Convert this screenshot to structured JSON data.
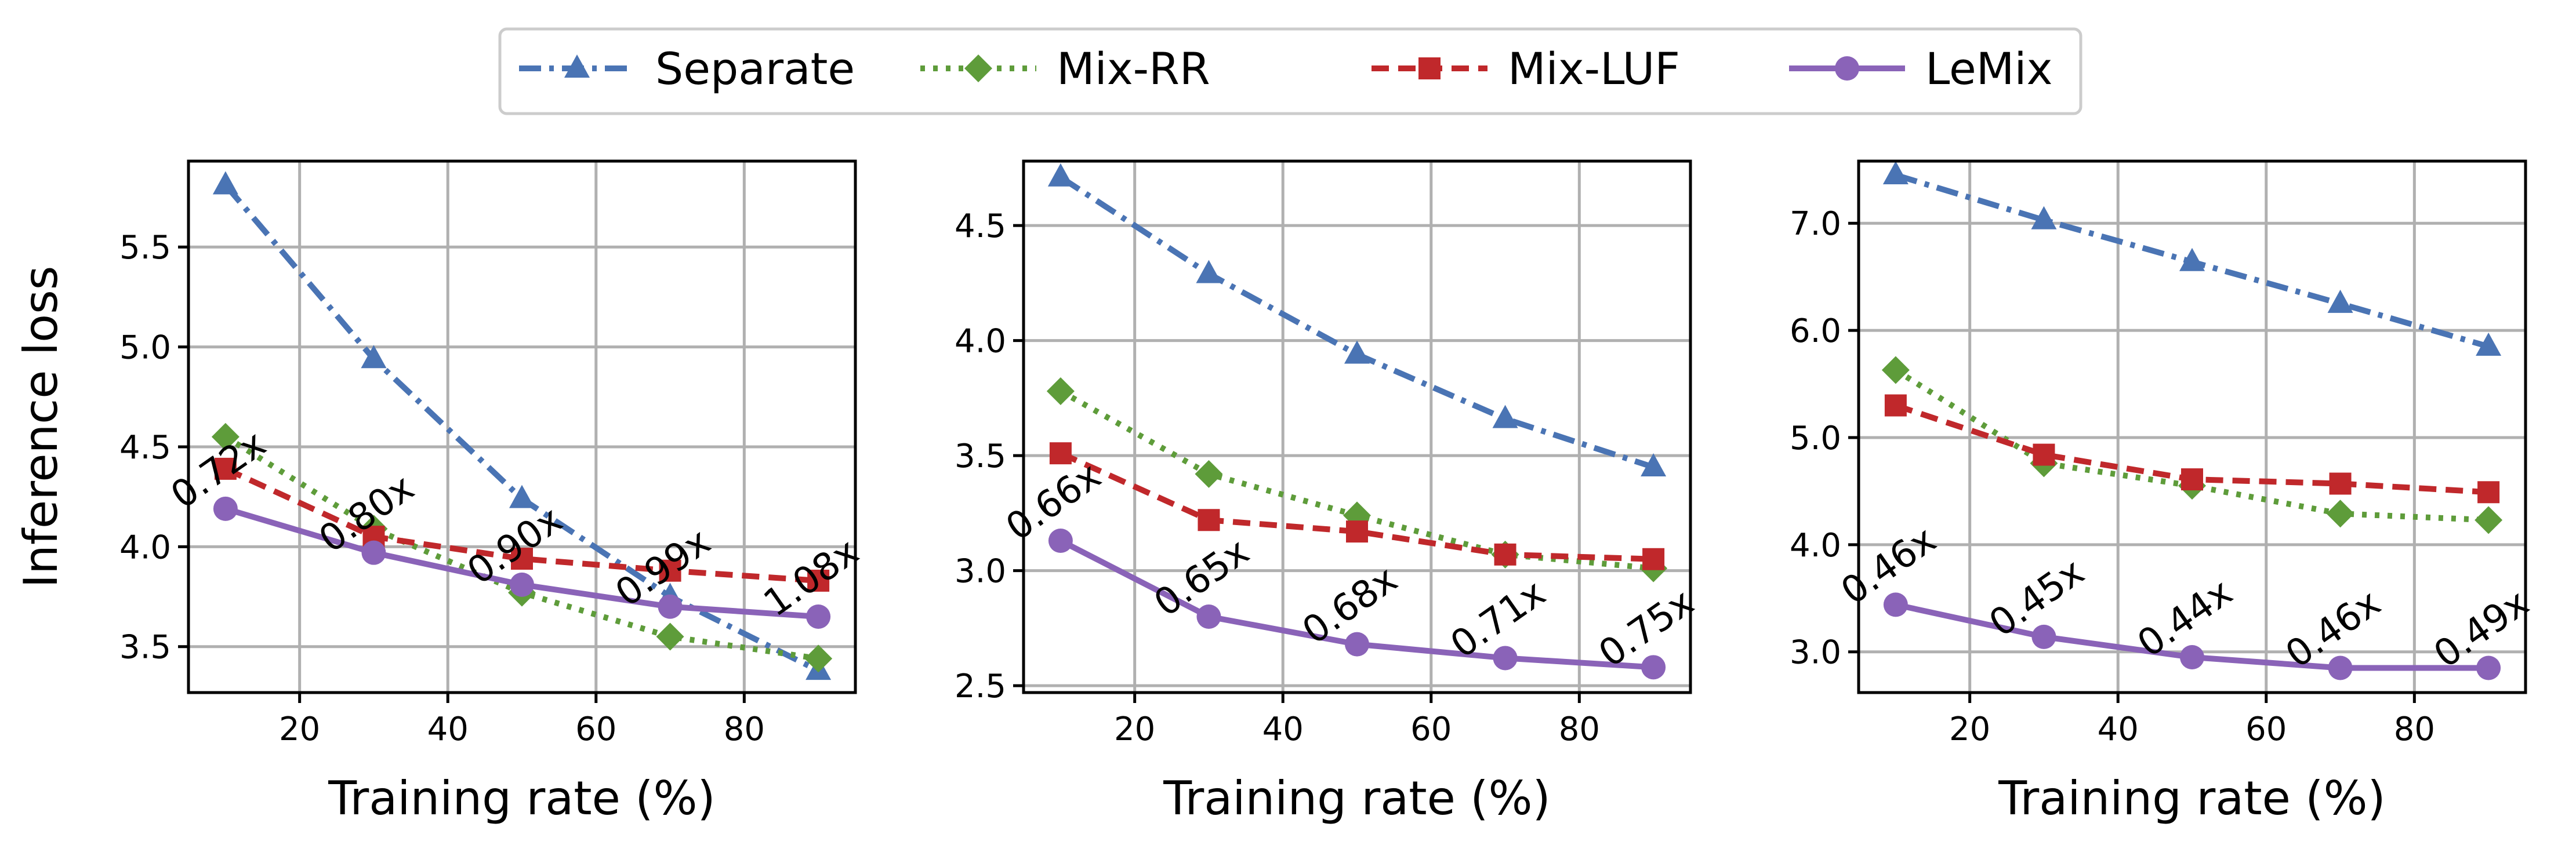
{
  "legend": {
    "items": [
      {
        "name": "Separate",
        "color": "#4a74b4",
        "marker": "triangle",
        "dash": "dashdot"
      },
      {
        "name": "Mix-RR",
        "color": "#5e9c3a",
        "marker": "diamond",
        "dash": "dotted"
      },
      {
        "name": "Mix-LUF",
        "color": "#c0282b",
        "marker": "square",
        "dash": "dashed"
      },
      {
        "name": "LeMix",
        "color": "#8a63b8",
        "marker": "circle",
        "dash": "solid"
      }
    ]
  },
  "chart_data": [
    {
      "type": "line",
      "xlabel": "Training rate (%)",
      "ylabel": "Inference loss",
      "x": [
        10,
        30,
        50,
        70,
        90
      ],
      "xlim": [
        5,
        95
      ],
      "ylim": [
        3.27,
        5.93
      ],
      "xticks": [
        20,
        40,
        60,
        80
      ],
      "yticks": [
        3.5,
        4.0,
        4.5,
        5.0,
        5.5
      ],
      "ytick_labels": [
        "3.5",
        "4.0",
        "4.5",
        "5.0",
        "5.5"
      ],
      "grid": true,
      "series": [
        {
          "name": "Separate",
          "values": [
            5.81,
            4.94,
            4.24,
            3.75,
            3.38
          ]
        },
        {
          "name": "Mix-RR",
          "values": [
            4.55,
            4.09,
            3.77,
            3.55,
            3.44
          ]
        },
        {
          "name": "Mix-LUF",
          "values": [
            4.39,
            4.05,
            3.94,
            3.88,
            3.83
          ]
        },
        {
          "name": "LeMix",
          "values": [
            4.19,
            3.97,
            3.81,
            3.7,
            3.65
          ]
        }
      ],
      "annotations": [
        "0.72x",
        "0.80x",
        "0.90x",
        "0.99x",
        "1.08x"
      ]
    },
    {
      "type": "line",
      "xlabel": "Training rate (%)",
      "ylabel": "",
      "x": [
        10,
        30,
        50,
        70,
        90
      ],
      "xlim": [
        5,
        95
      ],
      "ylim": [
        2.47,
        4.78
      ],
      "xticks": [
        20,
        40,
        60,
        80
      ],
      "yticks": [
        2.5,
        3.0,
        3.5,
        4.0,
        4.5
      ],
      "ytick_labels": [
        "2.5",
        "3.0",
        "3.5",
        "4.0",
        "4.5"
      ],
      "grid": true,
      "series": [
        {
          "name": "Separate",
          "values": [
            4.71,
            4.29,
            3.94,
            3.66,
            3.45
          ]
        },
        {
          "name": "Mix-RR",
          "values": [
            3.78,
            3.42,
            3.24,
            3.07,
            3.01
          ]
        },
        {
          "name": "Mix-LUF",
          "values": [
            3.51,
            3.22,
            3.17,
            3.07,
            3.05
          ]
        },
        {
          "name": "LeMix",
          "values": [
            3.13,
            2.8,
            2.68,
            2.62,
            2.58
          ]
        }
      ],
      "annotations": [
        "0.66x",
        "0.65x",
        "0.68x",
        "0.71x",
        "0.75x"
      ]
    },
    {
      "type": "line",
      "xlabel": "Training rate (%)",
      "ylabel": "",
      "x": [
        10,
        30,
        50,
        70,
        90
      ],
      "xlim": [
        5,
        95
      ],
      "ylim": [
        2.62,
        7.58
      ],
      "xticks": [
        20,
        40,
        60,
        80
      ],
      "yticks": [
        3.0,
        4.0,
        5.0,
        6.0,
        7.0
      ],
      "ytick_labels": [
        "3.0",
        "4.0",
        "5.0",
        "6.0",
        "7.0"
      ],
      "grid": true,
      "series": [
        {
          "name": "Separate",
          "values": [
            7.45,
            7.03,
            6.64,
            6.25,
            5.85
          ]
        },
        {
          "name": "Mix-RR",
          "values": [
            5.63,
            4.76,
            4.55,
            4.29,
            4.23
          ]
        },
        {
          "name": "Mix-LUF",
          "values": [
            5.3,
            4.84,
            4.61,
            4.57,
            4.49
          ]
        },
        {
          "name": "LeMix",
          "values": [
            3.44,
            3.14,
            2.95,
            2.85,
            2.85
          ]
        }
      ],
      "annotations": [
        "0.46x",
        "0.45x",
        "0.44x",
        "0.46x",
        "0.49x"
      ]
    }
  ]
}
